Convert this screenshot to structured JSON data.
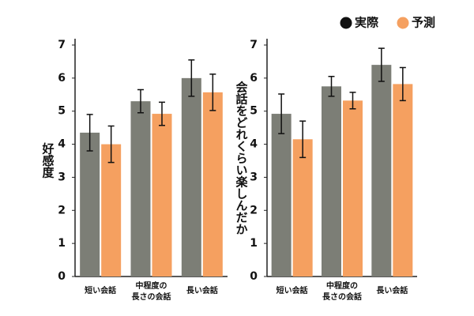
{
  "chart_data": [
    {
      "type": "bar",
      "y_label": "好感度",
      "categories": [
        "短い会話",
        "中程度の\n長さの会話",
        "長い会話"
      ],
      "series": [
        {
          "name": "実際",
          "color": "#7c7e76",
          "values": [
            4.35,
            5.3,
            6.0
          ],
          "errors": [
            0.55,
            0.35,
            0.55
          ]
        },
        {
          "name": "予測",
          "color": "#f5a060",
          "values": [
            4.0,
            4.92,
            5.57
          ],
          "errors": [
            0.55,
            0.35,
            0.55
          ]
        }
      ],
      "ylim": [
        0,
        7
      ],
      "yticks": [
        0,
        1,
        2,
        3,
        4,
        5,
        6,
        7
      ]
    },
    {
      "type": "bar",
      "y_label": "会話をどれくらい楽しんだか",
      "categories": [
        "短い会話",
        "中程度の\n長さの会話",
        "長い会話"
      ],
      "series": [
        {
          "color": "#7c7e76",
          "values": [
            4.92,
            5.75,
            6.4
          ],
          "errors": [
            0.6,
            0.3,
            0.5
          ]
        },
        {
          "color": "#f5a060",
          "values": [
            4.15,
            5.32,
            5.82
          ],
          "errors": [
            0.55,
            0.25,
            0.5
          ]
        }
      ],
      "ylim": [
        0,
        7
      ],
      "yticks": [
        0,
        1,
        2,
        3,
        4,
        5,
        6,
        7
      ]
    }
  ]
}
